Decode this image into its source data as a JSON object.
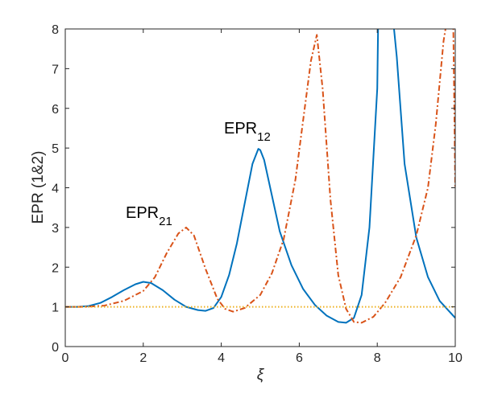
{
  "chart_data": {
    "type": "line",
    "title": "",
    "xlabel": "ξ",
    "ylabel": "EPR (1&2)",
    "xlim": [
      0,
      10
    ],
    "ylim": [
      0,
      8
    ],
    "xticks": [
      "0",
      "2",
      "4",
      "6",
      "8",
      "10"
    ],
    "yticks": [
      "0",
      "1",
      "2",
      "3",
      "4",
      "5",
      "6",
      "7",
      "8"
    ],
    "grid": false,
    "legend": "none",
    "annotations": [
      {
        "main": "EPR",
        "sub": "12",
        "x": 4.8,
        "y": 5.4
      },
      {
        "main": "EPR",
        "sub": "21",
        "x": 2.2,
        "y": 3.1
      }
    ],
    "series": [
      {
        "color": "#0072BD",
        "style": "solid",
        "x": [
          0,
          0.3,
          0.6,
          0.9,
          1.2,
          1.5,
          1.8,
          2.0,
          2.2,
          2.5,
          2.8,
          3.1,
          3.4,
          3.6,
          3.8,
          4.0,
          4.2,
          4.4,
          4.6,
          4.8,
          4.95,
          5.0,
          5.1,
          5.3,
          5.5,
          5.8,
          6.1,
          6.4,
          6.7,
          7.0,
          7.2,
          7.4,
          7.6,
          7.8,
          8.0,
          8.02,
          8.1,
          8.3,
          8.43,
          8.5,
          8.7,
          9.0,
          9.3,
          9.6,
          10.0
        ],
        "y": [
          1.0,
          1.0,
          1.02,
          1.1,
          1.25,
          1.42,
          1.57,
          1.63,
          1.6,
          1.42,
          1.18,
          1.0,
          0.92,
          0.9,
          0.97,
          1.25,
          1.8,
          2.6,
          3.6,
          4.6,
          4.98,
          4.95,
          4.7,
          3.8,
          2.9,
          2.05,
          1.45,
          1.05,
          0.78,
          0.62,
          0.6,
          0.72,
          1.3,
          3.0,
          6.5,
          8.0,
          10.0,
          10.0,
          8.0,
          7.3,
          4.6,
          2.75,
          1.75,
          1.15,
          0.72
        ]
      },
      {
        "color": "#D95319",
        "style": "dashdot",
        "x": [
          0,
          0.5,
          1.0,
          1.5,
          2.0,
          2.3,
          2.6,
          2.9,
          3.1,
          3.3,
          3.6,
          3.9,
          4.1,
          4.3,
          4.6,
          5.0,
          5.3,
          5.6,
          5.9,
          6.1,
          6.3,
          6.45,
          6.6,
          6.8,
          7.0,
          7.2,
          7.4,
          7.6,
          7.9,
          8.2,
          8.6,
          9.0,
          9.3,
          9.5,
          9.7,
          9.75,
          9.8,
          9.92,
          9.95,
          10.0
        ],
        "y": [
          1.0,
          1.0,
          1.03,
          1.15,
          1.4,
          1.75,
          2.35,
          2.85,
          3.0,
          2.8,
          1.95,
          1.2,
          0.95,
          0.88,
          0.97,
          1.3,
          1.85,
          2.7,
          4.2,
          5.7,
          7.2,
          7.85,
          6.5,
          3.7,
          1.8,
          0.95,
          0.62,
          0.6,
          0.75,
          1.1,
          1.75,
          2.8,
          4.0,
          5.6,
          7.7,
          8.0,
          10.0,
          10.0,
          8.0,
          4.0
        ]
      },
      {
        "color": "#EDB120",
        "style": "dotted",
        "x": [
          0,
          10
        ],
        "y": [
          1.0,
          1.0
        ]
      }
    ]
  }
}
